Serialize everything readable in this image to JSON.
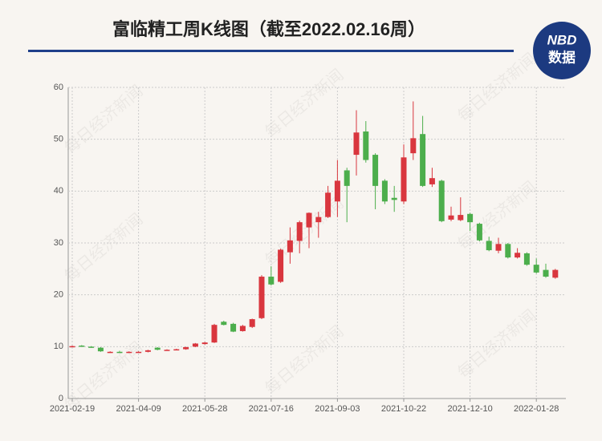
{
  "header": {
    "title": "富临精工周K线图（截至2022.02.16周）",
    "logo_top": "NBD",
    "logo_bottom": "数据"
  },
  "watermark": "每日经济新闻",
  "chart_data": {
    "type": "candlestick",
    "categories": [
      "2021-02-19",
      null,
      null,
      null,
      null,
      null,
      null,
      "2021-04-09",
      null,
      null,
      null,
      null,
      null,
      null,
      "2021-05-28",
      null,
      null,
      null,
      null,
      null,
      null,
      "2021-07-16",
      null,
      null,
      null,
      null,
      null,
      null,
      "2021-09-03",
      null,
      null,
      null,
      null,
      null,
      null,
      "2021-10-22",
      null,
      null,
      null,
      null,
      null,
      null,
      "2021-12-10",
      null,
      null,
      null,
      null,
      null,
      null,
      "2022-01-28",
      null,
      null
    ],
    "open": [
      10.0,
      10.2,
      10.0,
      9.8,
      8.9,
      9.0,
      9.0,
      9.0,
      9.0,
      9.8,
      9.4,
      9.4,
      9.5,
      10.0,
      10.5,
      10.8,
      14.8,
      14.4,
      13.0,
      13.8,
      15.5,
      23.5,
      22.5,
      28.2,
      30.4,
      33.0,
      34.0,
      35.0,
      38.0,
      44.0,
      47.0,
      51.5,
      47.0,
      42.0,
      38.7,
      38.0,
      47.3,
      51.0,
      41.3,
      42.0,
      34.5,
      34.4,
      35.6,
      33.7,
      30.4,
      28.5,
      29.8,
      27.2,
      28.0,
      25.8,
      24.8,
      23.3
    ],
    "high": [
      10.2,
      10.3,
      10.1,
      9.9,
      9.1,
      9.2,
      9.1,
      9.1,
      9.4,
      9.9,
      9.5,
      9.6,
      10.0,
      10.7,
      10.9,
      14.4,
      15.0,
      14.6,
      14.2,
      15.4,
      23.8,
      25.5,
      28.9,
      33.0,
      34.3,
      35.9,
      36.0,
      41.0,
      46.0,
      44.5,
      55.6,
      53.5,
      47.3,
      42.3,
      41.0,
      49.0,
      57.3,
      54.5,
      44.5,
      42.2,
      37.0,
      38.8,
      35.8,
      33.9,
      31.2,
      31.0,
      30.0,
      29.0,
      28.2,
      27.0,
      26.0,
      25.0
    ],
    "low": [
      9.9,
      10.0,
      9.8,
      9.0,
      8.8,
      8.8,
      8.9,
      8.9,
      8.9,
      9.3,
      9.3,
      9.3,
      9.4,
      9.9,
      10.4,
      10.7,
      14.1,
      12.8,
      12.9,
      13.6,
      15.3,
      21.8,
      22.3,
      26.0,
      28.0,
      29.0,
      31.0,
      34.8,
      35.0,
      34.0,
      43.0,
      45.5,
      36.5,
      37.5,
      36.0,
      37.5,
      46.0,
      40.8,
      40.8,
      34.0,
      34.2,
      34.2,
      32.3,
      30.3,
      28.4,
      28.0,
      27.0,
      27.0,
      25.6,
      24.1,
      23.3,
      23.1
    ],
    "close": [
      10.1,
      10.1,
      9.9,
      9.1,
      9.0,
      8.9,
      9.0,
      9.0,
      9.3,
      9.4,
      9.4,
      9.5,
      9.9,
      10.6,
      10.8,
      14.2,
      14.2,
      12.9,
      14.0,
      15.3,
      23.5,
      22.0,
      28.7,
      30.5,
      34.0,
      35.8,
      35.0,
      39.7,
      42.0,
      41.0,
      51.3,
      46.0,
      41.0,
      38.0,
      38.3,
      46.5,
      50.2,
      41.0,
      42.5,
      34.2,
      35.3,
      35.4,
      34.0,
      30.5,
      28.6,
      29.8,
      27.2,
      28.1,
      25.8,
      24.3,
      23.5,
      24.8
    ],
    "up_color": "#d9363e",
    "down_color": "#4cae4c",
    "ylim": [
      0,
      60
    ],
    "yticks": [
      0,
      10,
      20,
      30,
      40,
      50,
      60
    ],
    "grid": true
  }
}
